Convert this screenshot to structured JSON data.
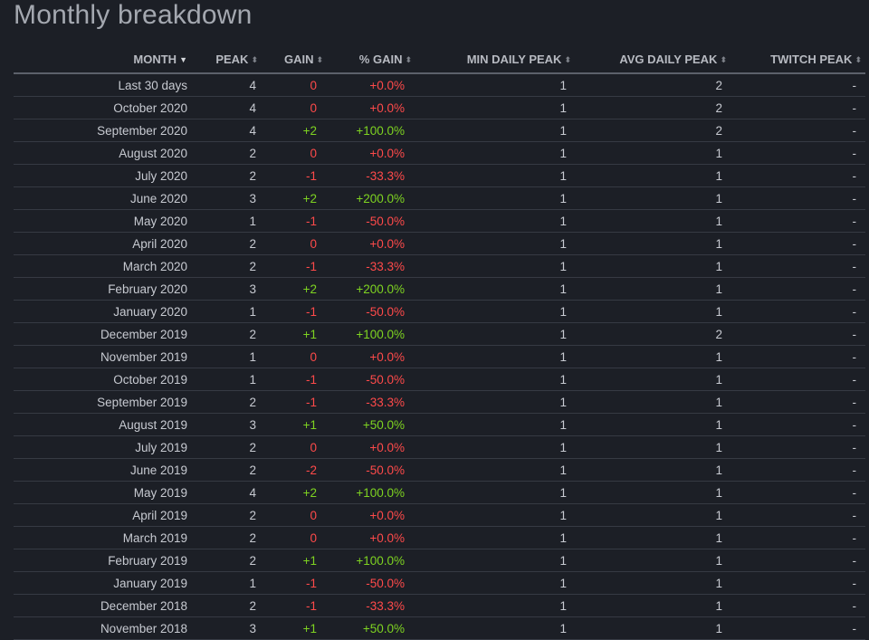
{
  "title": "Monthly breakdown",
  "columns": {
    "month": "MONTH",
    "peak": "PEAK",
    "gain": "GAIN",
    "pct_gain": "% GAIN",
    "min_daily_peak": "MIN DAILY PEAK",
    "avg_daily_peak": "AVG DAILY PEAK",
    "twitch_peak": "TWITCH PEAK"
  },
  "sort": {
    "column": "month",
    "direction": "desc"
  },
  "colors": {
    "background": "#1c1f26",
    "positive": "#7ed321",
    "negative": "#ff4a4a",
    "text": "#c7cad1"
  },
  "icons": {
    "sort_desc": "caret-down-icon",
    "sortable": "sort-up-down-icon"
  },
  "rows": [
    {
      "month": "Last 30 days",
      "peak": "4",
      "gain": "0",
      "pct_gain": "+0.0%",
      "min_daily_peak": "1",
      "avg_daily_peak": "2",
      "twitch_peak": "-"
    },
    {
      "month": "October 2020",
      "peak": "4",
      "gain": "0",
      "pct_gain": "+0.0%",
      "min_daily_peak": "1",
      "avg_daily_peak": "2",
      "twitch_peak": "-"
    },
    {
      "month": "September 2020",
      "peak": "4",
      "gain": "+2",
      "pct_gain": "+100.0%",
      "min_daily_peak": "1",
      "avg_daily_peak": "2",
      "twitch_peak": "-"
    },
    {
      "month": "August 2020",
      "peak": "2",
      "gain": "0",
      "pct_gain": "+0.0%",
      "min_daily_peak": "1",
      "avg_daily_peak": "1",
      "twitch_peak": "-"
    },
    {
      "month": "July 2020",
      "peak": "2",
      "gain": "-1",
      "pct_gain": "-33.3%",
      "min_daily_peak": "1",
      "avg_daily_peak": "1",
      "twitch_peak": "-"
    },
    {
      "month": "June 2020",
      "peak": "3",
      "gain": "+2",
      "pct_gain": "+200.0%",
      "min_daily_peak": "1",
      "avg_daily_peak": "1",
      "twitch_peak": "-"
    },
    {
      "month": "May 2020",
      "peak": "1",
      "gain": "-1",
      "pct_gain": "-50.0%",
      "min_daily_peak": "1",
      "avg_daily_peak": "1",
      "twitch_peak": "-"
    },
    {
      "month": "April 2020",
      "peak": "2",
      "gain": "0",
      "pct_gain": "+0.0%",
      "min_daily_peak": "1",
      "avg_daily_peak": "1",
      "twitch_peak": "-"
    },
    {
      "month": "March 2020",
      "peak": "2",
      "gain": "-1",
      "pct_gain": "-33.3%",
      "min_daily_peak": "1",
      "avg_daily_peak": "1",
      "twitch_peak": "-"
    },
    {
      "month": "February 2020",
      "peak": "3",
      "gain": "+2",
      "pct_gain": "+200.0%",
      "min_daily_peak": "1",
      "avg_daily_peak": "1",
      "twitch_peak": "-"
    },
    {
      "month": "January 2020",
      "peak": "1",
      "gain": "-1",
      "pct_gain": "-50.0%",
      "min_daily_peak": "1",
      "avg_daily_peak": "1",
      "twitch_peak": "-"
    },
    {
      "month": "December 2019",
      "peak": "2",
      "gain": "+1",
      "pct_gain": "+100.0%",
      "min_daily_peak": "1",
      "avg_daily_peak": "2",
      "twitch_peak": "-"
    },
    {
      "month": "November 2019",
      "peak": "1",
      "gain": "0",
      "pct_gain": "+0.0%",
      "min_daily_peak": "1",
      "avg_daily_peak": "1",
      "twitch_peak": "-"
    },
    {
      "month": "October 2019",
      "peak": "1",
      "gain": "-1",
      "pct_gain": "-50.0%",
      "min_daily_peak": "1",
      "avg_daily_peak": "1",
      "twitch_peak": "-"
    },
    {
      "month": "September 2019",
      "peak": "2",
      "gain": "-1",
      "pct_gain": "-33.3%",
      "min_daily_peak": "1",
      "avg_daily_peak": "1",
      "twitch_peak": "-"
    },
    {
      "month": "August 2019",
      "peak": "3",
      "gain": "+1",
      "pct_gain": "+50.0%",
      "min_daily_peak": "1",
      "avg_daily_peak": "1",
      "twitch_peak": "-"
    },
    {
      "month": "July 2019",
      "peak": "2",
      "gain": "0",
      "pct_gain": "+0.0%",
      "min_daily_peak": "1",
      "avg_daily_peak": "1",
      "twitch_peak": "-"
    },
    {
      "month": "June 2019",
      "peak": "2",
      "gain": "-2",
      "pct_gain": "-50.0%",
      "min_daily_peak": "1",
      "avg_daily_peak": "1",
      "twitch_peak": "-"
    },
    {
      "month": "May 2019",
      "peak": "4",
      "gain": "+2",
      "pct_gain": "+100.0%",
      "min_daily_peak": "1",
      "avg_daily_peak": "1",
      "twitch_peak": "-"
    },
    {
      "month": "April 2019",
      "peak": "2",
      "gain": "0",
      "pct_gain": "+0.0%",
      "min_daily_peak": "1",
      "avg_daily_peak": "1",
      "twitch_peak": "-"
    },
    {
      "month": "March 2019",
      "peak": "2",
      "gain": "0",
      "pct_gain": "+0.0%",
      "min_daily_peak": "1",
      "avg_daily_peak": "1",
      "twitch_peak": "-"
    },
    {
      "month": "February 2019",
      "peak": "2",
      "gain": "+1",
      "pct_gain": "+100.0%",
      "min_daily_peak": "1",
      "avg_daily_peak": "1",
      "twitch_peak": "-"
    },
    {
      "month": "January 2019",
      "peak": "1",
      "gain": "-1",
      "pct_gain": "-50.0%",
      "min_daily_peak": "1",
      "avg_daily_peak": "1",
      "twitch_peak": "-"
    },
    {
      "month": "December 2018",
      "peak": "2",
      "gain": "-1",
      "pct_gain": "-33.3%",
      "min_daily_peak": "1",
      "avg_daily_peak": "1",
      "twitch_peak": "-"
    },
    {
      "month": "November 2018",
      "peak": "3",
      "gain": "+1",
      "pct_gain": "+50.0%",
      "min_daily_peak": "1",
      "avg_daily_peak": "1",
      "twitch_peak": "-"
    }
  ]
}
